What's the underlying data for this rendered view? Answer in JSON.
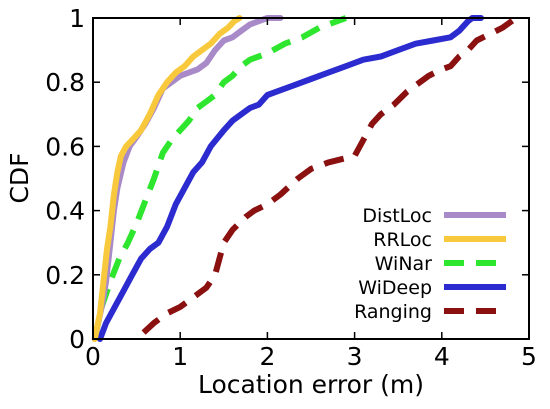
{
  "chart_data": {
    "type": "line",
    "xlabel": "Location error (m)",
    "ylabel": "CDF",
    "xlim": [
      0,
      5
    ],
    "ylim": [
      0,
      1
    ],
    "xticks": [
      "0",
      "1",
      "2",
      "3",
      "4",
      "5"
    ],
    "yticks": [
      "0",
      "0.2",
      "0.4",
      "0.6",
      "0.8",
      "1"
    ],
    "xtick_values": [
      0,
      1,
      2,
      3,
      4,
      5
    ],
    "ytick_values": [
      0,
      0.2,
      0.4,
      0.6,
      0.8,
      1
    ],
    "grid": false,
    "legend_position": "bottom-right",
    "series": [
      {
        "name": "DistLoc",
        "color": "#a98ac9",
        "dash": "solid",
        "x": [
          0.02,
          0.1,
          0.15,
          0.2,
          0.24,
          0.28,
          0.35,
          0.42,
          0.5,
          0.6,
          0.7,
          0.8,
          0.9,
          1.0,
          1.1,
          1.2,
          1.3,
          1.4,
          1.5,
          1.6,
          1.7,
          1.8,
          1.9,
          2.0,
          2.1,
          2.15
        ],
        "y": [
          0.0,
          0.1,
          0.18,
          0.3,
          0.4,
          0.47,
          0.55,
          0.6,
          0.63,
          0.67,
          0.72,
          0.78,
          0.8,
          0.82,
          0.83,
          0.84,
          0.86,
          0.9,
          0.93,
          0.94,
          0.96,
          0.98,
          0.99,
          1.0,
          1.0,
          1.0
        ]
      },
      {
        "name": "RRLoc",
        "color": "#f8c93c",
        "dash": "solid",
        "x": [
          0.02,
          0.08,
          0.12,
          0.16,
          0.2,
          0.24,
          0.28,
          0.32,
          0.38,
          0.45,
          0.55,
          0.65,
          0.75,
          0.85,
          0.95,
          1.05,
          1.15,
          1.25,
          1.35,
          1.45,
          1.55,
          1.62,
          1.68
        ],
        "y": [
          0.0,
          0.08,
          0.18,
          0.28,
          0.35,
          0.45,
          0.52,
          0.57,
          0.6,
          0.62,
          0.65,
          0.7,
          0.76,
          0.8,
          0.83,
          0.85,
          0.88,
          0.9,
          0.92,
          0.95,
          0.97,
          0.99,
          1.0
        ]
      },
      {
        "name": "WiNar",
        "color": "#2ee62e",
        "dash": "dashed",
        "x": [
          0.02,
          0.1,
          0.2,
          0.3,
          0.4,
          0.5,
          0.6,
          0.7,
          0.8,
          0.9,
          1.0,
          1.1,
          1.2,
          1.3,
          1.4,
          1.5,
          1.6,
          1.7,
          1.8,
          1.9,
          2.0,
          2.2,
          2.4,
          2.6,
          2.8,
          2.9
        ],
        "y": [
          0.0,
          0.1,
          0.18,
          0.25,
          0.3,
          0.36,
          0.43,
          0.5,
          0.58,
          0.62,
          0.65,
          0.68,
          0.72,
          0.74,
          0.76,
          0.8,
          0.82,
          0.85,
          0.87,
          0.88,
          0.89,
          0.92,
          0.94,
          0.97,
          0.99,
          1.0
        ]
      },
      {
        "name": "WiDeep",
        "color": "#2b2bd0",
        "dash": "solid",
        "x": [
          0.08,
          0.15,
          0.25,
          0.35,
          0.45,
          0.55,
          0.65,
          0.75,
          0.85,
          0.95,
          1.05,
          1.15,
          1.25,
          1.35,
          1.5,
          1.6,
          1.7,
          1.8,
          1.9,
          2.0,
          2.1,
          2.3,
          2.5,
          2.7,
          2.9,
          3.1,
          3.3,
          3.5,
          3.7,
          3.9,
          4.1,
          4.2,
          4.3,
          4.35,
          4.4,
          4.45
        ],
        "y": [
          0.0,
          0.05,
          0.1,
          0.15,
          0.2,
          0.25,
          0.28,
          0.3,
          0.35,
          0.42,
          0.47,
          0.52,
          0.55,
          0.6,
          0.65,
          0.68,
          0.7,
          0.72,
          0.73,
          0.76,
          0.77,
          0.79,
          0.81,
          0.83,
          0.85,
          0.87,
          0.88,
          0.9,
          0.92,
          0.93,
          0.94,
          0.96,
          0.99,
          1.0,
          1.0,
          1.0
        ]
      },
      {
        "name": "Ranging",
        "color": "#8b1010",
        "dash": "dashed",
        "x": [
          0.58,
          0.7,
          0.85,
          1.0,
          1.15,
          1.3,
          1.4,
          1.45,
          1.5,
          1.6,
          1.75,
          1.85,
          2.0,
          2.15,
          2.35,
          2.5,
          2.6,
          2.7,
          2.85,
          3.0,
          3.1,
          3.2,
          3.3,
          3.45,
          3.6,
          3.75,
          3.85,
          4.0,
          4.1,
          4.2,
          4.3,
          4.4,
          4.55,
          4.7,
          4.85
        ],
        "y": [
          0.02,
          0.05,
          0.08,
          0.1,
          0.13,
          0.16,
          0.2,
          0.25,
          0.3,
          0.34,
          0.38,
          0.4,
          0.42,
          0.45,
          0.5,
          0.53,
          0.54,
          0.55,
          0.56,
          0.57,
          0.62,
          0.67,
          0.7,
          0.73,
          0.77,
          0.8,
          0.82,
          0.84,
          0.85,
          0.88,
          0.9,
          0.93,
          0.95,
          0.97,
          1.0
        ]
      }
    ]
  }
}
